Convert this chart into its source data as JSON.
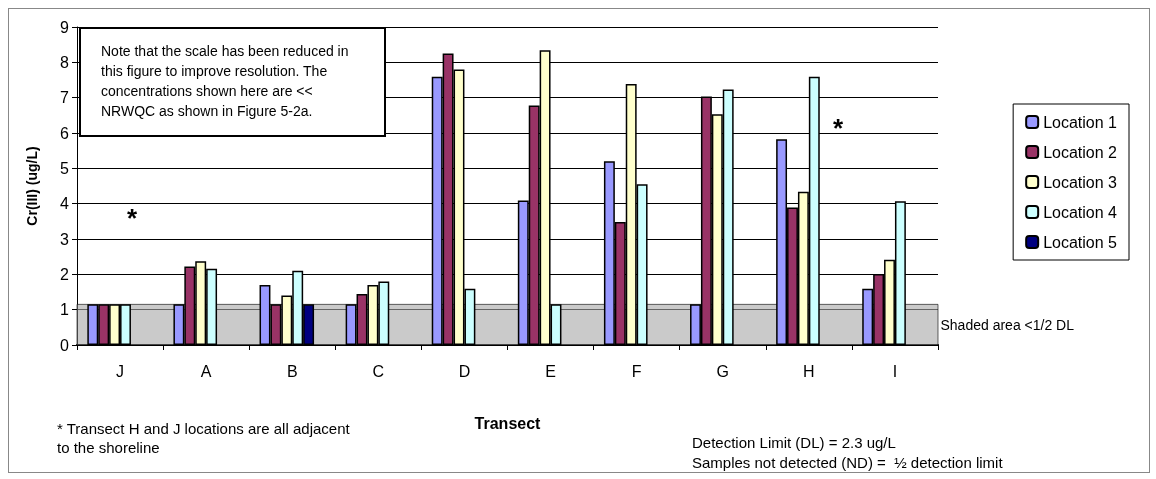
{
  "chart_data": {
    "type": "bar",
    "ylabel": "Cr(III) (ug/L)",
    "xlabel": "Transect",
    "categories": [
      "J",
      "A",
      "B",
      "C",
      "D",
      "E",
      "F",
      "G",
      "H",
      "I"
    ],
    "series": [
      {
        "name": "Location 1",
        "color": "#9999ff",
        "values": [
          1.15,
          1.15,
          1.7,
          1.15,
          7.59,
          4.09,
          5.2,
          1.15,
          5.82,
          1.59
        ]
      },
      {
        "name": "Location 2",
        "color": "#993366",
        "values": [
          1.15,
          2.22,
          1.15,
          1.44,
          8.25,
          6.78,
          3.48,
          7.03,
          3.89,
          2.01
        ]
      },
      {
        "name": "Location 3",
        "color": "#ffffcc",
        "values": [
          1.15,
          2.37,
          1.4,
          1.7,
          7.8,
          8.34,
          7.39,
          6.53,
          4.34,
          2.41
        ]
      },
      {
        "name": "Location 4",
        "color": "#ccffff",
        "values": [
          1.15,
          2.16,
          2.1,
          1.8,
          1.59,
          1.15,
          4.55,
          7.23,
          7.59,
          4.07
        ]
      },
      {
        "name": "Location 5",
        "color": "#000080",
        "values": [
          null,
          null,
          1.15,
          null,
          null,
          null,
          null,
          null,
          null,
          null
        ]
      }
    ],
    "ylim": [
      0,
      9
    ],
    "yticks": [
      0,
      1,
      2,
      3,
      4,
      5,
      6,
      7,
      8,
      9
    ],
    "grid": "y",
    "legend": "right",
    "bands": [
      {
        "axis": "y",
        "from": 0,
        "to": 1.15,
        "label": "Shaded area <1/2 DL",
        "color": "#a6a6a6"
      }
    ],
    "annotations": [
      "Note that the scale has been reduced in this figure to improve resolution. The concentrations shown here are << NRWQC as shown in Figure 5-2a.",
      "*",
      "*",
      "* Transect H and J locations are all adjacent to the shoreline",
      "Detection Limit (DL) = 2.3 ug/L",
      "Samples not detected (ND) =  ½ detection limit"
    ]
  }
}
